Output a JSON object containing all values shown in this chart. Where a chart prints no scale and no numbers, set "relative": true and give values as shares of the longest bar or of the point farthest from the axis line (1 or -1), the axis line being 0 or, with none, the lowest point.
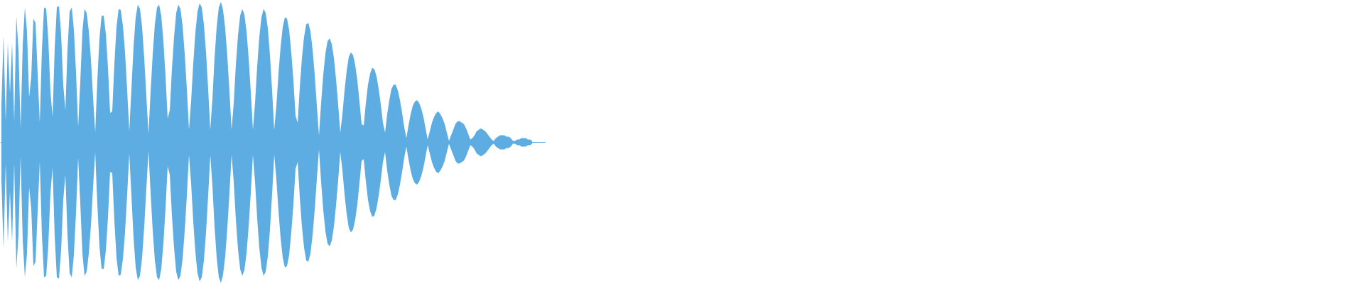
{
  "chart_data": {
    "type": "area",
    "relative": true,
    "categories": [
      null,
      null,
      null,
      null,
      null,
      null,
      null,
      null,
      null,
      null,
      null,
      null,
      null,
      null,
      null,
      null,
      null,
      null,
      null,
      null,
      null,
      null,
      null,
      null,
      null,
      null,
      null,
      null,
      null,
      null,
      null,
      null,
      null,
      null,
      null,
      null,
      null,
      null,
      null,
      null,
      null,
      null,
      null,
      null,
      null,
      null,
      null,
      null,
      null,
      null,
      null,
      null,
      null,
      null,
      null,
      null,
      null,
      null,
      null,
      null,
      null,
      null,
      null,
      null,
      null,
      null,
      null,
      null,
      null,
      null,
      null,
      null,
      null,
      null,
      null,
      null,
      null,
      null,
      null,
      null,
      null,
      null,
      null,
      null,
      null,
      null,
      null,
      null,
      null,
      null,
      null,
      null,
      null,
      null,
      null,
      null,
      null,
      null,
      null,
      null,
      null,
      null,
      null,
      null,
      null,
      null,
      null,
      null,
      null,
      null,
      null,
      null,
      null,
      null,
      null,
      null,
      null,
      null,
      null,
      null,
      null,
      null,
      null,
      null,
      null,
      null,
      null,
      null,
      null,
      null,
      null,
      null,
      null,
      null,
      null,
      null,
      null,
      null,
      null,
      null,
      null,
      null,
      null,
      null,
      null,
      null,
      null,
      null,
      null,
      null,
      null,
      null,
      null,
      null,
      null,
      null,
      null,
      null,
      null,
      null,
      null,
      null,
      null,
      null,
      null,
      null,
      null,
      null,
      null,
      null,
      null,
      null,
      null,
      null,
      null,
      null,
      null,
      null,
      null,
      null,
      null,
      null,
      null,
      null,
      null,
      null,
      null,
      null,
      null,
      null,
      null,
      null,
      null,
      null,
      null,
      null,
      null,
      null,
      null,
      null,
      null,
      null,
      null,
      null,
      null,
      null,
      null,
      null,
      null,
      null,
      null,
      null,
      null,
      null,
      null,
      null,
      null,
      null,
      null,
      null,
      null,
      null,
      null,
      null,
      null,
      null,
      null,
      null,
      null,
      null,
      null,
      null,
      null,
      null,
      null,
      null,
      null,
      null,
      null,
      null,
      null,
      null,
      null,
      null,
      null,
      null,
      null,
      null,
      null,
      null,
      null,
      null,
      null,
      null,
      null,
      null
    ],
    "ref_lines": [
      {
        "axis": "y",
        "value": 0,
        "color": "#5dade2"
      }
    ],
    "series": [
      {
        "color": "#5dade2",
        "values": [
          0.27,
          0.76,
          0.15,
          0.71,
          0.35,
          0.71,
          0.15,
          0.9,
          0.66,
          0.1,
          0.7,
          0.96,
          0.79,
          0.32,
          0.47,
          0.88,
          0.85,
          0.49,
          0.14,
          0.66,
          0.96,
          0.95,
          0.73,
          0.36,
          0.18,
          0.67,
          0.96,
          0.97,
          0.77,
          0.41,
          0.23,
          0.66,
          0.93,
          0.96,
          0.8,
          0.5,
          0.11,
          0.43,
          0.79,
          0.95,
          0.92,
          0.79,
          0.59,
          0.32,
          0.07,
          0.44,
          0.74,
          0.9,
          0.9,
          0.77,
          0.53,
          0.21,
          0.22,
          0.56,
          0.82,
          0.95,
          0.94,
          0.83,
          0.64,
          0.37,
          0.08,
          0.38,
          0.68,
          0.89,
          0.98,
          0.95,
          0.82,
          0.6,
          0.33,
          0.06,
          0.36,
          0.63,
          0.84,
          0.96,
          0.98,
          0.9,
          0.72,
          0.47,
          0.17,
          0.23,
          0.52,
          0.75,
          0.92,
          0.98,
          0.95,
          0.83,
          0.63,
          0.38,
          0.09,
          0.29,
          0.56,
          0.78,
          0.93,
          0.99,
          0.96,
          0.84,
          0.64,
          0.38,
          0.09,
          0.31,
          0.6,
          0.82,
          0.96,
          1.0,
          0.94,
          0.81,
          0.61,
          0.36,
          0.09,
          0.28,
          0.55,
          0.76,
          0.9,
          0.95,
          0.91,
          0.79,
          0.6,
          0.36,
          0.09,
          0.28,
          0.54,
          0.75,
          0.89,
          0.95,
          0.92,
          0.81,
          0.62,
          0.37,
          0.09,
          0.26,
          0.49,
          0.68,
          0.82,
          0.89,
          0.88,
          0.8,
          0.64,
          0.44,
          0.19,
          0.14,
          0.39,
          0.6,
          0.75,
          0.84,
          0.85,
          0.79,
          0.66,
          0.48,
          0.26,
          0.05,
          0.28,
          0.48,
          0.63,
          0.72,
          0.74,
          0.7,
          0.6,
          0.45,
          0.27,
          0.07,
          0.2,
          0.37,
          0.51,
          0.61,
          0.64,
          0.62,
          0.55,
          0.44,
          0.29,
          0.13,
          0.12,
          0.28,
          0.41,
          0.49,
          0.53,
          0.52,
          0.47,
          0.38,
          0.27,
          0.14,
          0.07,
          0.2,
          0.3,
          0.38,
          0.41,
          0.41,
          0.37,
          0.3,
          0.21,
          0.11,
          0.03,
          0.12,
          0.2,
          0.26,
          0.29,
          0.3,
          0.28,
          0.24,
          0.18,
          0.1,
          0.02,
          0.08,
          0.14,
          0.18,
          0.21,
          0.22,
          0.2,
          0.17,
          0.13,
          0.07,
          0.01,
          0.05,
          0.09,
          0.13,
          0.15,
          0.15,
          0.14,
          0.13,
          0.1,
          0.06,
          0.02,
          0.03,
          0.05,
          0.08,
          0.09,
          0.1,
          0.09,
          0.08,
          0.06,
          0.04,
          0.02,
          0.01,
          0.03,
          0.04,
          0.05,
          0.05,
          0.05,
          0.04,
          0.04,
          0.03,
          0.01,
          0.01,
          0.02,
          0.02,
          0.03,
          0.03,
          0.03,
          0.02,
          0.02,
          0.01,
          null,
          null,
          null,
          null,
          null,
          null
        ]
      },
      {
        "color": "#5dade2",
        "values": [
          -0.27,
          -0.76,
          -0.15,
          -0.71,
          -0.35,
          -0.71,
          -0.15,
          -0.9,
          -0.66,
          -0.1,
          -0.7,
          -0.96,
          -0.79,
          -0.32,
          -0.47,
          -0.88,
          -0.85,
          -0.49,
          -0.14,
          -0.66,
          -0.96,
          -0.95,
          -0.73,
          -0.36,
          -0.18,
          -0.67,
          -0.96,
          -0.97,
          -0.77,
          -0.41,
          -0.23,
          -0.66,
          -0.93,
          -0.96,
          -0.8,
          -0.5,
          -0.11,
          -0.43,
          -0.79,
          -0.95,
          -0.92,
          -0.79,
          -0.59,
          -0.32,
          -0.07,
          -0.44,
          -0.74,
          -0.9,
          -0.9,
          -0.77,
          -0.53,
          -0.21,
          -0.22,
          -0.56,
          -0.82,
          -0.95,
          -0.94,
          -0.83,
          -0.64,
          -0.37,
          -0.08,
          -0.38,
          -0.68,
          -0.89,
          -0.98,
          -0.95,
          -0.82,
          -0.6,
          -0.33,
          -0.06,
          -0.36,
          -0.63,
          -0.84,
          -0.96,
          -0.98,
          -0.9,
          -0.72,
          -0.47,
          -0.17,
          -0.23,
          -0.52,
          -0.75,
          -0.92,
          -0.98,
          -0.95,
          -0.83,
          -0.63,
          -0.38,
          -0.09,
          -0.29,
          -0.56,
          -0.78,
          -0.93,
          -0.99,
          -0.96,
          -0.84,
          -0.64,
          -0.38,
          -0.09,
          -0.31,
          -0.6,
          -0.82,
          -0.96,
          -1.0,
          -0.94,
          -0.81,
          -0.61,
          -0.36,
          -0.09,
          -0.28,
          -0.55,
          -0.76,
          -0.9,
          -0.95,
          -0.91,
          -0.79,
          -0.6,
          -0.36,
          -0.09,
          -0.28,
          -0.54,
          -0.75,
          -0.89,
          -0.95,
          -0.92,
          -0.81,
          -0.62,
          -0.37,
          -0.09,
          -0.26,
          -0.49,
          -0.68,
          -0.82,
          -0.89,
          -0.88,
          -0.8,
          -0.64,
          -0.44,
          -0.19,
          -0.14,
          -0.39,
          -0.6,
          -0.75,
          -0.84,
          -0.85,
          -0.79,
          -0.66,
          -0.48,
          -0.26,
          -0.05,
          -0.28,
          -0.48,
          -0.63,
          -0.72,
          -0.74,
          -0.7,
          -0.6,
          -0.45,
          -0.27,
          -0.07,
          -0.2,
          -0.37,
          -0.51,
          -0.61,
          -0.64,
          -0.62,
          -0.55,
          -0.44,
          -0.29,
          -0.13,
          -0.12,
          -0.28,
          -0.41,
          -0.49,
          -0.53,
          -0.52,
          -0.47,
          -0.38,
          -0.27,
          -0.14,
          -0.07,
          -0.2,
          -0.3,
          -0.38,
          -0.41,
          -0.41,
          -0.37,
          -0.3,
          -0.21,
          -0.11,
          -0.03,
          -0.12,
          -0.2,
          -0.26,
          -0.29,
          -0.3,
          -0.28,
          -0.24,
          -0.18,
          -0.1,
          -0.02,
          -0.08,
          -0.14,
          -0.18,
          -0.21,
          -0.22,
          -0.2,
          -0.17,
          -0.13,
          -0.07,
          -0.01,
          -0.05,
          -0.09,
          -0.13,
          -0.15,
          -0.15,
          -0.14,
          -0.13,
          -0.1,
          -0.06,
          -0.02,
          -0.03,
          -0.05,
          -0.08,
          -0.09,
          -0.1,
          -0.09,
          -0.08,
          -0.06,
          -0.04,
          -0.02,
          -0.01,
          -0.03,
          -0.04,
          -0.05,
          -0.05,
          -0.05,
          -0.04,
          -0.04,
          -0.03,
          -0.01,
          -0.01,
          -0.02,
          -0.02,
          -0.03,
          -0.03,
          -0.03,
          -0.02,
          -0.02,
          -0.01,
          null,
          null,
          null,
          null,
          null,
          null
        ]
      }
    ]
  }
}
